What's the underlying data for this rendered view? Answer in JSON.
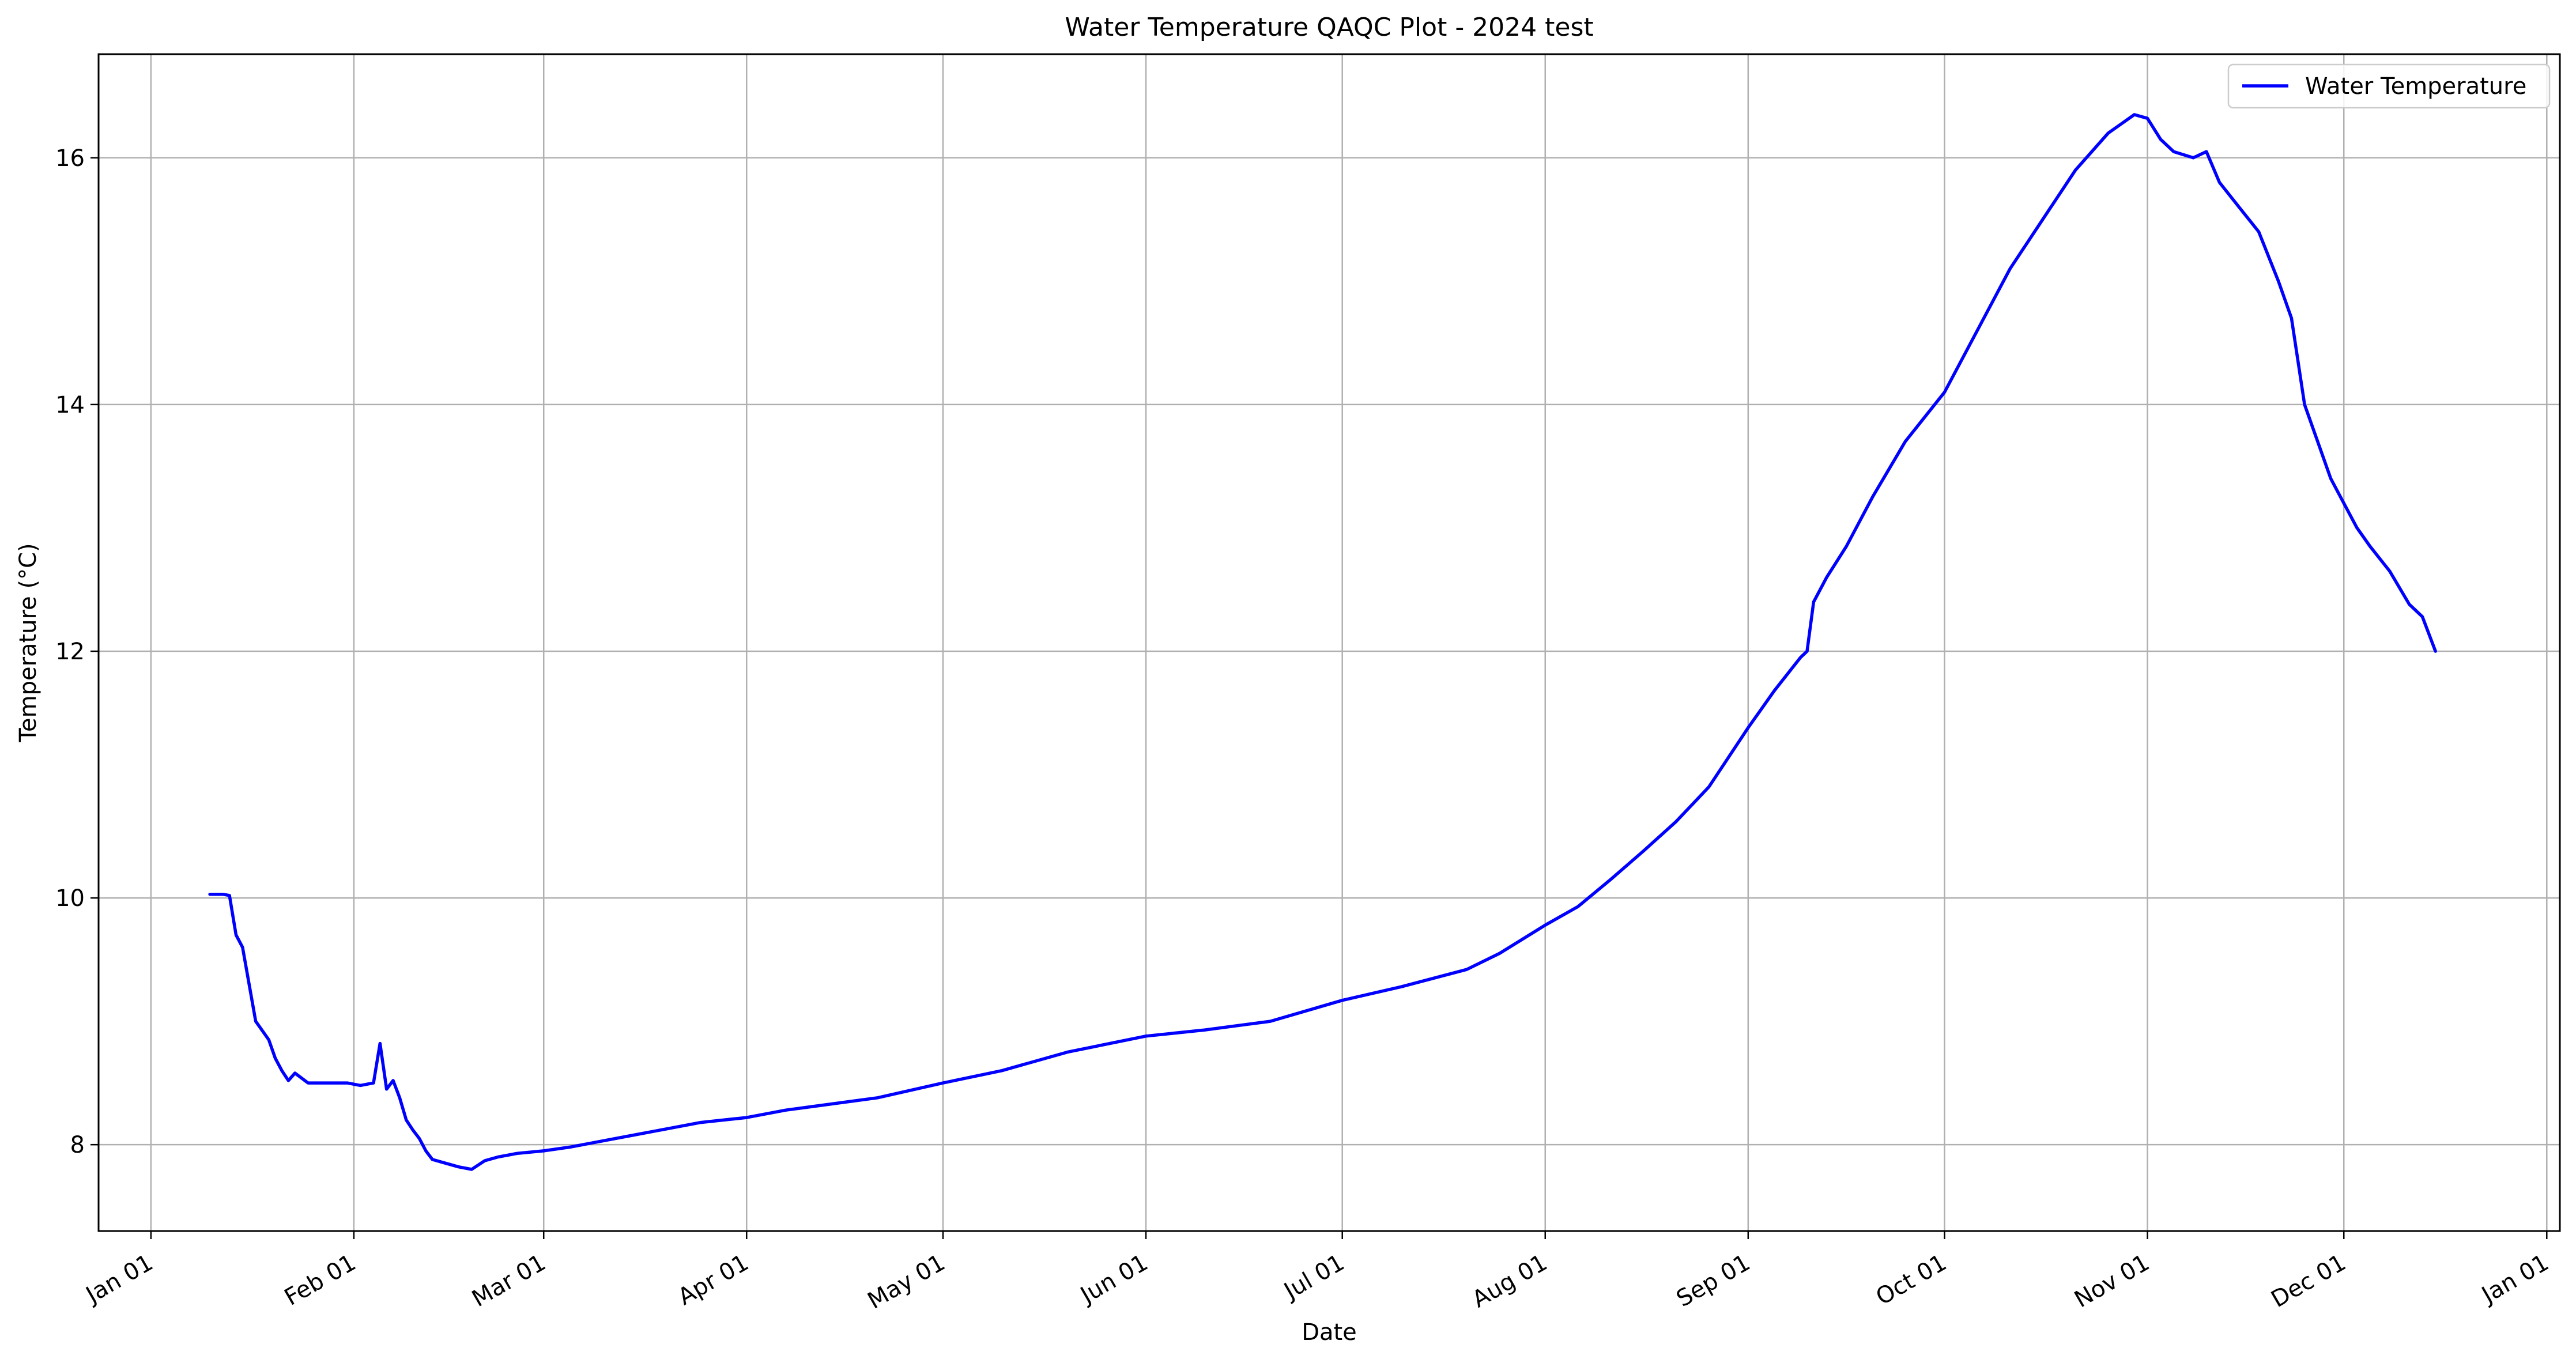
{
  "chart_data": {
    "type": "line",
    "title": "Water Temperature QAQC Plot - 2024 test",
    "xlabel": "Date",
    "ylabel": "Temperature (°C)",
    "xlim": [
      "2023-12-24",
      "2025-01-03"
    ],
    "ylim": [
      7.3,
      16.84
    ],
    "grid": true,
    "legend_position": "top-right",
    "x_ticks": [
      {
        "date": "2024-01-01",
        "label": "Jan 01"
      },
      {
        "date": "2024-02-01",
        "label": "Feb 01"
      },
      {
        "date": "2024-03-01",
        "label": "Mar 01"
      },
      {
        "date": "2024-04-01",
        "label": "Apr 01"
      },
      {
        "date": "2024-05-01",
        "label": "May 01"
      },
      {
        "date": "2024-06-01",
        "label": "Jun 01"
      },
      {
        "date": "2024-07-01",
        "label": "Jul 01"
      },
      {
        "date": "2024-08-01",
        "label": "Aug 01"
      },
      {
        "date": "2024-09-01",
        "label": "Sep 01"
      },
      {
        "date": "2024-10-01",
        "label": "Oct 01"
      },
      {
        "date": "2024-11-01",
        "label": "Nov 01"
      },
      {
        "date": "2024-12-01",
        "label": "Dec 01"
      },
      {
        "date": "2025-01-01",
        "label": "Jan 01"
      }
    ],
    "y_ticks": [
      {
        "value": 8,
        "label": "8"
      },
      {
        "value": 10,
        "label": "10"
      },
      {
        "value": 12,
        "label": "12"
      },
      {
        "value": 14,
        "label": "14"
      },
      {
        "value": 16,
        "label": "16"
      }
    ],
    "series": [
      {
        "name": "Water Temperature",
        "color": "#0000ff",
        "points": [
          [
            "2024-01-10",
            10.03
          ],
          [
            "2024-01-12",
            10.03
          ],
          [
            "2024-01-13",
            10.02
          ],
          [
            "2024-01-14",
            9.7
          ],
          [
            "2024-01-15",
            9.6
          ],
          [
            "2024-01-16",
            9.3
          ],
          [
            "2024-01-17",
            9.0
          ],
          [
            "2024-01-19",
            8.85
          ],
          [
            "2024-01-20",
            8.7
          ],
          [
            "2024-01-21",
            8.6
          ],
          [
            "2024-01-22",
            8.52
          ],
          [
            "2024-01-23",
            8.58
          ],
          [
            "2024-01-25",
            8.5
          ],
          [
            "2024-01-28",
            8.5
          ],
          [
            "2024-01-31",
            8.5
          ],
          [
            "2024-02-02",
            8.48
          ],
          [
            "2024-02-04",
            8.5
          ],
          [
            "2024-02-05",
            8.82
          ],
          [
            "2024-02-06",
            8.45
          ],
          [
            "2024-02-07",
            8.52
          ],
          [
            "2024-02-08",
            8.38
          ],
          [
            "2024-02-09",
            8.2
          ],
          [
            "2024-02-10",
            8.12
          ],
          [
            "2024-02-11",
            8.05
          ],
          [
            "2024-02-12",
            7.95
          ],
          [
            "2024-02-13",
            7.88
          ],
          [
            "2024-02-15",
            7.85
          ],
          [
            "2024-02-17",
            7.82
          ],
          [
            "2024-02-19",
            7.8
          ],
          [
            "2024-02-21",
            7.87
          ],
          [
            "2024-02-23",
            7.9
          ],
          [
            "2024-02-26",
            7.93
          ],
          [
            "2024-03-01",
            7.95
          ],
          [
            "2024-03-05",
            7.98
          ],
          [
            "2024-03-10",
            8.03
          ],
          [
            "2024-03-15",
            8.08
          ],
          [
            "2024-03-20",
            8.13
          ],
          [
            "2024-03-25",
            8.18
          ],
          [
            "2024-04-01",
            8.22
          ],
          [
            "2024-04-07",
            8.28
          ],
          [
            "2024-04-14",
            8.33
          ],
          [
            "2024-04-21",
            8.38
          ],
          [
            "2024-05-01",
            8.5
          ],
          [
            "2024-05-10",
            8.6
          ],
          [
            "2024-05-20",
            8.75
          ],
          [
            "2024-06-01",
            8.88
          ],
          [
            "2024-06-10",
            8.93
          ],
          [
            "2024-06-20",
            9.0
          ],
          [
            "2024-07-01",
            9.17
          ],
          [
            "2024-07-10",
            9.28
          ],
          [
            "2024-07-20",
            9.42
          ],
          [
            "2024-07-25",
            9.55
          ],
          [
            "2024-08-01",
            9.78
          ],
          [
            "2024-08-06",
            9.93
          ],
          [
            "2024-08-11",
            10.15
          ],
          [
            "2024-08-16",
            10.38
          ],
          [
            "2024-08-21",
            10.62
          ],
          [
            "2024-08-26",
            10.9
          ],
          [
            "2024-09-01",
            11.38
          ],
          [
            "2024-09-05",
            11.68
          ],
          [
            "2024-09-09",
            11.95
          ],
          [
            "2024-09-10",
            12.0
          ],
          [
            "2024-09-11",
            12.4
          ],
          [
            "2024-09-13",
            12.6
          ],
          [
            "2024-09-16",
            12.85
          ],
          [
            "2024-09-20",
            13.25
          ],
          [
            "2024-09-25",
            13.7
          ],
          [
            "2024-10-01",
            14.1
          ],
          [
            "2024-10-06",
            14.6
          ],
          [
            "2024-10-11",
            15.1
          ],
          [
            "2024-10-16",
            15.5
          ],
          [
            "2024-10-21",
            15.9
          ],
          [
            "2024-10-26",
            16.2
          ],
          [
            "2024-10-30",
            16.35
          ],
          [
            "2024-11-01",
            16.32
          ],
          [
            "2024-11-03",
            16.15
          ],
          [
            "2024-11-05",
            16.05
          ],
          [
            "2024-11-08",
            16.0
          ],
          [
            "2024-11-10",
            16.05
          ],
          [
            "2024-11-12",
            15.8
          ],
          [
            "2024-11-15",
            15.6
          ],
          [
            "2024-11-18",
            15.4
          ],
          [
            "2024-11-21",
            15.0
          ],
          [
            "2024-11-23",
            14.7
          ],
          [
            "2024-11-25",
            14.0
          ],
          [
            "2024-11-27",
            13.7
          ],
          [
            "2024-11-29",
            13.4
          ],
          [
            "2024-12-01",
            13.2
          ],
          [
            "2024-12-03",
            13.0
          ],
          [
            "2024-12-05",
            12.85
          ],
          [
            "2024-12-08",
            12.65
          ],
          [
            "2024-12-11",
            12.38
          ],
          [
            "2024-12-13",
            12.28
          ],
          [
            "2024-12-15",
            12.0
          ]
        ]
      }
    ]
  }
}
